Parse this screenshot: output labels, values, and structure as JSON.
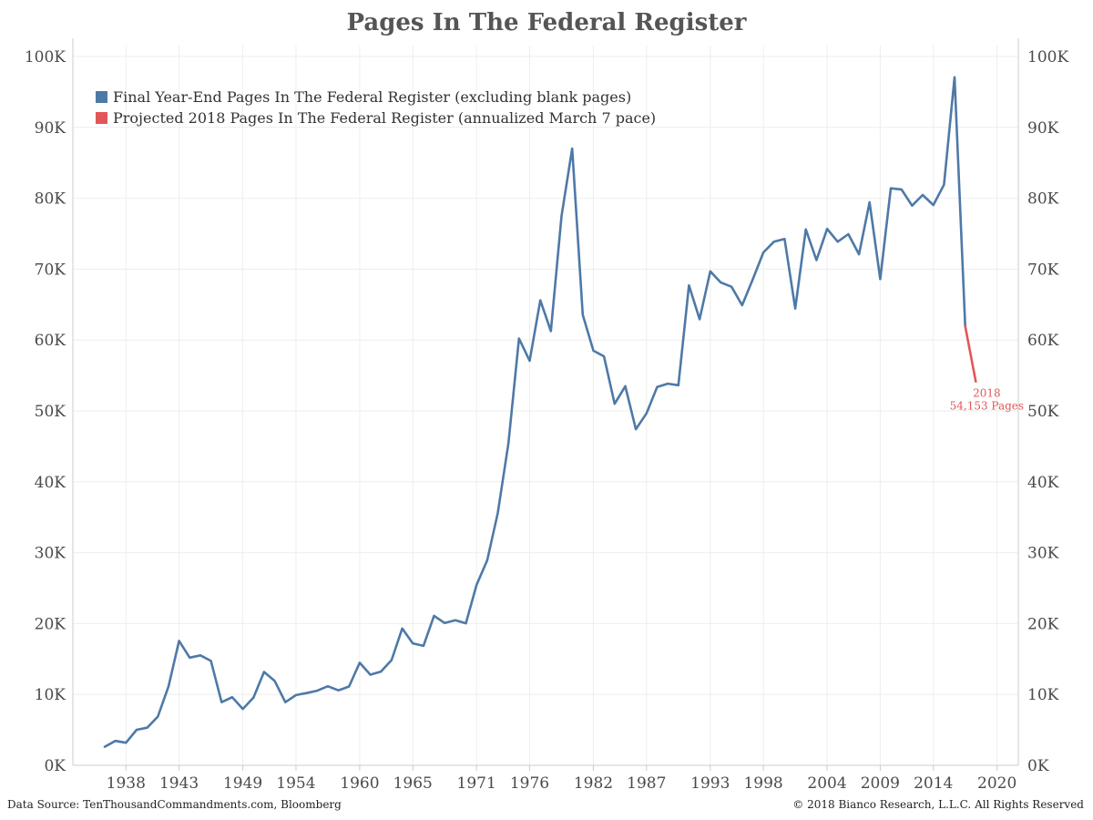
{
  "colors": {
    "final_series": "#4e79a7",
    "projected_series": "#e15759",
    "grid": "#eeeeee",
    "axis": "#cccccc",
    "text": "#4a4a4a"
  },
  "footer": {
    "source": "Data Source: TenThousandCommandments.com, Bloomberg",
    "copyright": "© 2018 Bianco Research, L.L.C. All Rights Reserved"
  },
  "chart_data": {
    "type": "line",
    "title": "Pages In The Federal Register",
    "xlabel": "",
    "ylabel": "",
    "xlim": [
      1933,
      2022
    ],
    "ylim": [
      0,
      100000
    ],
    "x_ticks": [
      1938,
      1943,
      1949,
      1954,
      1960,
      1965,
      1971,
      1976,
      1982,
      1987,
      1993,
      1998,
      2004,
      2009,
      2014,
      2020
    ],
    "y_ticks": [
      0,
      10000,
      20000,
      30000,
      40000,
      50000,
      60000,
      70000,
      80000,
      90000,
      100000
    ],
    "y_tick_labels": [
      "0K",
      "10K",
      "20K",
      "30K",
      "40K",
      "50K",
      "60K",
      "70K",
      "80K",
      "90K",
      "100K"
    ],
    "grid": true,
    "legend_position": "top-left",
    "series": [
      {
        "name": "Final Year-End Pages In The Federal Register (excluding blank pages)",
        "color": "#4e79a7",
        "x": [
          1936,
          1937,
          1938,
          1939,
          1940,
          1941,
          1942,
          1943,
          1944,
          1945,
          1946,
          1947,
          1948,
          1949,
          1950,
          1951,
          1952,
          1953,
          1954,
          1955,
          1956,
          1957,
          1958,
          1959,
          1960,
          1961,
          1962,
          1963,
          1964,
          1965,
          1966,
          1967,
          1968,
          1969,
          1970,
          1971,
          1972,
          1973,
          1974,
          1975,
          1976,
          1977,
          1978,
          1979,
          1980,
          1981,
          1982,
          1983,
          1984,
          1985,
          1986,
          1987,
          1988,
          1989,
          1990,
          1991,
          1992,
          1993,
          1994,
          1995,
          1996,
          1997,
          1998,
          1999,
          2000,
          2001,
          2002,
          2003,
          2004,
          2005,
          2006,
          2007,
          2008,
          2009,
          2010,
          2011,
          2012,
          2013,
          2014,
          2015,
          2016,
          2017
        ],
        "y": [
          2620,
          3450,
          3194,
          5007,
          5307,
          6877,
          11134,
          17553,
          15194,
          15508,
          14736,
          8902,
          9608,
          7952,
          9562,
          13175,
          11896,
          8912,
          9910,
          10196,
          10528,
          11156,
          10579,
          11116,
          14479,
          12792,
          13226,
          14842,
          19304,
          17206,
          16850,
          21088,
          20072,
          20464,
          20036,
          25447,
          28924,
          35592,
          45422,
          60221,
          57072,
          65603,
          61261,
          77498,
          87012,
          63554,
          58494,
          57704,
          50998,
          53480,
          47418,
          49654,
          53376,
          53842,
          53620,
          67716,
          62928,
          69688,
          68108,
          67518,
          64914,
          68530,
          72356,
          73880,
          74258,
          64438,
          75606,
          71269,
          75675,
          73870,
          74937,
          72090,
          79435,
          68598,
          81405,
          81247,
          78961,
          80462,
          79033,
          81911,
          97069,
          61950
        ]
      },
      {
        "name": "Projected 2018 Pages In The Federal Register (annualized March 7 pace)",
        "color": "#e15759",
        "x": [
          2017,
          2018
        ],
        "y": [
          61950,
          54153
        ]
      }
    ],
    "annotations": [
      {
        "x": 2018,
        "y": 54153,
        "line1": "2018",
        "line2": "54,153 Pages",
        "color": "#e15759"
      }
    ]
  }
}
